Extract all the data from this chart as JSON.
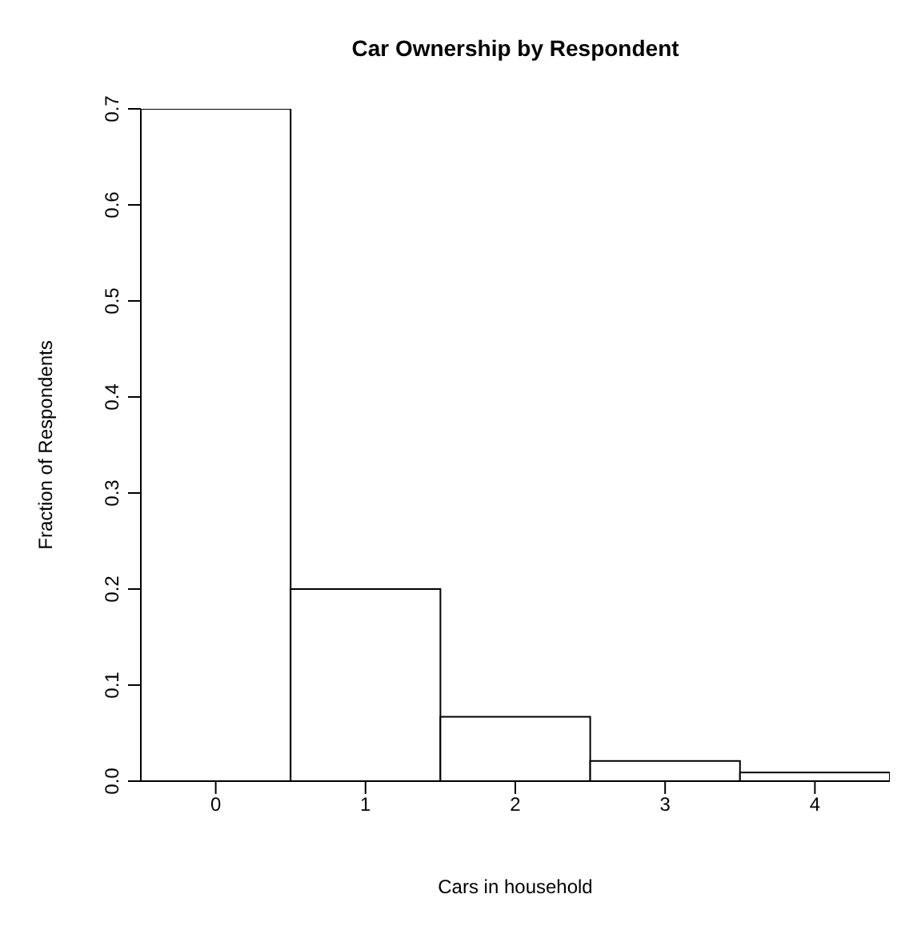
{
  "chart_data": {
    "type": "histogram",
    "title": "Car Ownership by Respondent",
    "xlabel": "Cars in household",
    "ylabel": "Fraction of Respondents",
    "bins": [
      -0.5,
      0.5,
      1.5,
      2.5,
      3.5,
      4.5
    ],
    "values": [
      0.7,
      0.2,
      0.067,
      0.021,
      0.009
    ],
    "color": "#ffffff",
    "xlim": [
      -0.5,
      4.5
    ],
    "xticks": [
      0,
      1,
      2,
      3,
      4
    ],
    "ylim": [
      0,
      0.7
    ],
    "yticks": [
      {
        "value": 0,
        "label": "0.0"
      },
      0.1,
      0.2,
      0.3,
      0.4,
      0.5,
      0.6,
      0.7
    ],
    "grid": false,
    "legend": false
  }
}
